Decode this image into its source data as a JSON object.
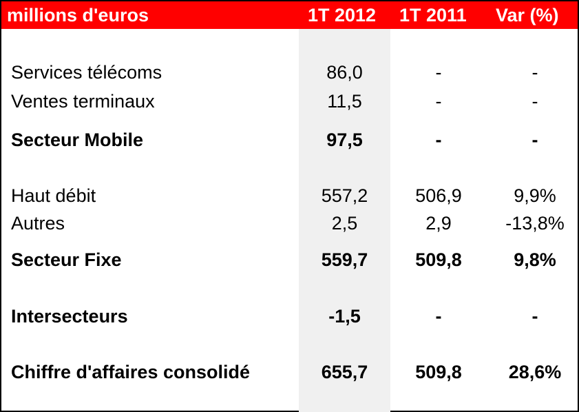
{
  "header": {
    "unit_label": "millions d'euros",
    "col_2012": "1T 2012",
    "col_2011": "1T 2011",
    "col_var": "Var (%)"
  },
  "rows": [
    {
      "label": "Services télécoms",
      "v2012": "86,0",
      "v2011": "-",
      "var": "-"
    },
    {
      "label": "Ventes terminaux",
      "v2012": "11,5",
      "v2011": "-",
      "var": "-"
    },
    {
      "label": "Secteur Mobile",
      "v2012": "97,5",
      "v2011": "-",
      "var": "-"
    },
    {
      "label": "Haut débit",
      "v2012": "557,2",
      "v2011": "506,9",
      "var": "9,9%"
    },
    {
      "label": "Autres",
      "v2012": "2,5",
      "v2011": "2,9",
      "var": "-13,8%"
    },
    {
      "label": "Secteur Fixe",
      "v2012": "559,7",
      "v2011": "509,8",
      "var": "9,8%"
    },
    {
      "label": "Intersecteurs",
      "v2012": "-1,5",
      "v2011": "-",
      "var": "-"
    },
    {
      "label": "Chiffre d'affaires consolidé",
      "v2012": "655,7",
      "v2011": "509,8",
      "var": "28,6%"
    }
  ],
  "colors": {
    "header_bg": "#ff0000",
    "header_text": "#ffffff",
    "highlight_column_bg": "#f0f0f0"
  }
}
